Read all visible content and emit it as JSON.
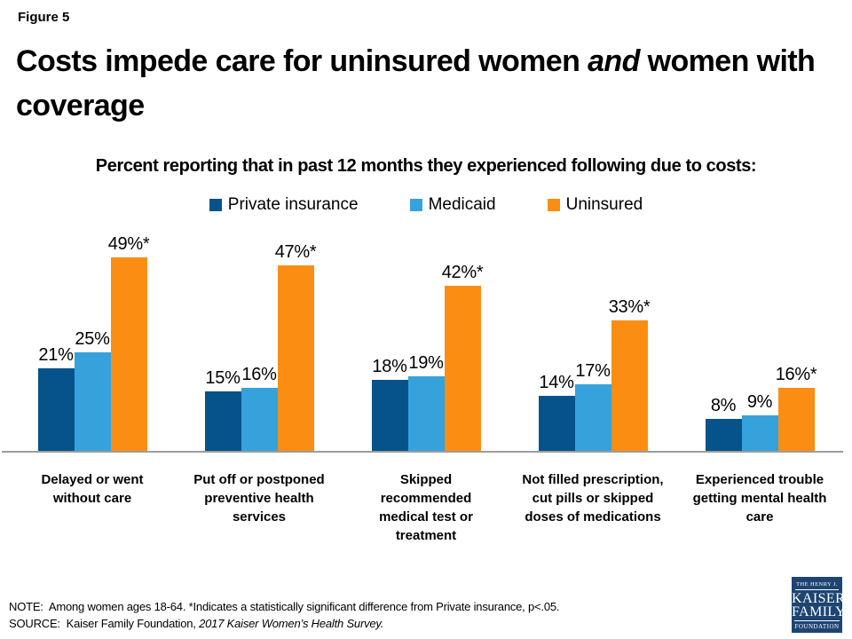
{
  "figure_label": "Figure 5",
  "title": {
    "before_italic": "Costs impede care for uninsured women ",
    "italic": "and",
    "after_italic": " women with coverage"
  },
  "subtitle": "Percent reporting that in past 12 months they experienced following due to costs:",
  "colors": {
    "private_insurance": "#05538A",
    "medicaid": "#36A2DC",
    "uninsured": "#FB8D12",
    "axis_line": "#9C9C9C",
    "logo_bg": "#1E4472"
  },
  "chart_data": {
    "type": "bar",
    "title": "Percent reporting that in past 12 months they experienced following due to costs:",
    "categories": [
      "Delayed or went without care",
      "Put off or postponed preventive health services",
      "Skipped recommended medical test or treatment",
      "Not filled prescription, cut pills or skipped doses of medications",
      "Experienced trouble getting mental health care"
    ],
    "category_lines": [
      [
        "Delayed or went",
        "without care"
      ],
      [
        "Put off or postponed",
        "preventive health",
        "services"
      ],
      [
        "Skipped",
        "recommended",
        "medical test or",
        "treatment"
      ],
      [
        "Not filled prescription,",
        "cut pills or skipped",
        "doses of medications"
      ],
      [
        "Experienced trouble",
        "getting mental health",
        "care"
      ]
    ],
    "series": [
      {
        "name": "Private insurance",
        "color": "#05538A",
        "values": [
          21,
          15,
          18,
          14,
          8
        ],
        "labels": [
          "21%",
          "15%",
          "18%",
          "14%",
          "8%"
        ]
      },
      {
        "name": "Medicaid",
        "color": "#36A2DC",
        "values": [
          25,
          16,
          19,
          17,
          9
        ],
        "labels": [
          "25%",
          "16%",
          "19%",
          "17%",
          "9%"
        ]
      },
      {
        "name": "Uninsured",
        "color": "#FB8D12",
        "values": [
          49,
          47,
          42,
          33,
          16
        ],
        "labels": [
          "49%*",
          "47%*",
          "42%*",
          "33%*",
          "16%*"
        ]
      }
    ],
    "xlabel": "",
    "ylabel": "",
    "ylim": [
      0,
      50
    ],
    "grid": false,
    "legend_position": "top",
    "value_label_position": "outside-end"
  },
  "footer": {
    "note_label": "NOTE:",
    "note_text": "Among women ages 18-64. *Indicates a statistically significant difference from Private insurance, p<.05.",
    "source_label": "SOURCE:",
    "source_text": "Kaiser Family Foundation,",
    "source_italic": "2017 Kaiser Women’s Health Survey."
  },
  "logo": {
    "line1": "THE HENRY J.",
    "line2": "KAISER",
    "line3": "FAMILY",
    "line4": "FOUNDATION"
  }
}
